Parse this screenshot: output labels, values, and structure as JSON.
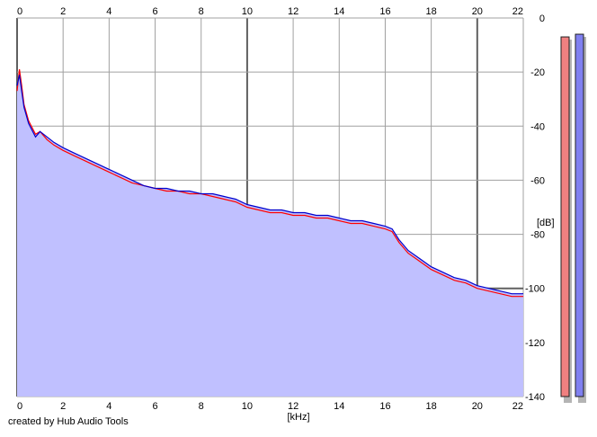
{
  "credit": "created by Hub Audio Tools",
  "colors": {
    "background": "#ffffff",
    "plot_area": "#ffffff",
    "fill": "#c0c0ff",
    "series_left": "#ff0000",
    "series_right": "#0000cc",
    "grid_minor": "#a0a0a0",
    "grid_major": "#606060",
    "meter_left": "#f08080",
    "meter_right": "#8080f0",
    "meter_shadow": "#b4b4b4"
  },
  "chart_data": {
    "type": "line",
    "title": "",
    "xlabel": "[kHz]",
    "ylabel": "[dB]",
    "xlim": [
      0,
      22
    ],
    "ylim": [
      -140,
      0
    ],
    "xticks": [
      0,
      2,
      4,
      6,
      8,
      10,
      12,
      14,
      16,
      18,
      20,
      22
    ],
    "yticks": [
      0,
      -20,
      -40,
      -60,
      -80,
      -100,
      -120,
      -140
    ],
    "xtick_labels": [
      "0",
      "2",
      "4",
      "6",
      "8",
      "10",
      "12",
      "14",
      "16",
      "18",
      "20",
      "22"
    ],
    "ytick_labels": [
      "0",
      "-20",
      "-40",
      "-60",
      "-80",
      "-100",
      "-120",
      "-140"
    ],
    "grid": true,
    "fill_under": true,
    "series": [
      {
        "color": "#ff0000",
        "x": [
          0,
          0.1,
          0.2,
          0.3,
          0.5,
          0.8,
          1,
          1.3,
          1.6,
          2,
          2.5,
          3,
          3.5,
          4,
          4.5,
          5,
          5.5,
          6,
          6.5,
          7,
          7.5,
          8,
          8.5,
          9,
          9.5,
          10,
          10.5,
          11,
          11.5,
          12,
          12.5,
          13,
          13.5,
          14,
          14.5,
          15,
          15.5,
          16,
          16.3,
          16.6,
          17,
          17.5,
          18,
          18.5,
          19,
          19.5,
          20,
          20.5,
          21,
          21.5,
          22
        ],
        "y": [
          -27,
          -19,
          -25,
          -32,
          -38,
          -43,
          -42,
          -45,
          -47,
          -49,
          -51,
          -53,
          -55,
          -57,
          -59,
          -61,
          -62,
          -63,
          -64,
          -64,
          -65,
          -65,
          -66,
          -67,
          -68,
          -70,
          -71,
          -72,
          -72,
          -73,
          -73,
          -74,
          -74,
          -75,
          -76,
          -76,
          -77,
          -78,
          -79,
          -83,
          -87,
          -90,
          -93,
          -95,
          -97,
          -98,
          -100,
          -101,
          -102,
          -103,
          -103
        ]
      },
      {
        "color": "#0000cc",
        "x": [
          0,
          0.1,
          0.2,
          0.3,
          0.5,
          0.8,
          1,
          1.3,
          1.6,
          2,
          2.5,
          3,
          3.5,
          4,
          4.5,
          5,
          5.5,
          6,
          6.5,
          7,
          7.5,
          8,
          8.5,
          9,
          9.5,
          10,
          10.5,
          11,
          11.5,
          12,
          12.5,
          13,
          13.5,
          14,
          14.5,
          15,
          15.5,
          16,
          16.3,
          16.6,
          17,
          17.5,
          18,
          18.5,
          19,
          19.5,
          20,
          20.5,
          21,
          21.5,
          22
        ],
        "y": [
          -25,
          -21,
          -27,
          -33,
          -39,
          -44,
          -42,
          -44,
          -46,
          -48,
          -50,
          -52,
          -54,
          -56,
          -58,
          -60,
          -62,
          -63,
          -63,
          -64,
          -64,
          -65,
          -65,
          -66,
          -67,
          -69,
          -70,
          -71,
          -71,
          -72,
          -72,
          -73,
          -73,
          -74,
          -75,
          -75,
          -76,
          -77,
          -78,
          -82,
          -86,
          -89,
          -92,
          -94,
          -96,
          -97,
          -99,
          -100,
          -101,
          -102,
          -102
        ]
      }
    ],
    "meters": [
      {
        "color": "#f08080",
        "db": -7
      },
      {
        "color": "#8080f0",
        "db": -6
      }
    ]
  }
}
